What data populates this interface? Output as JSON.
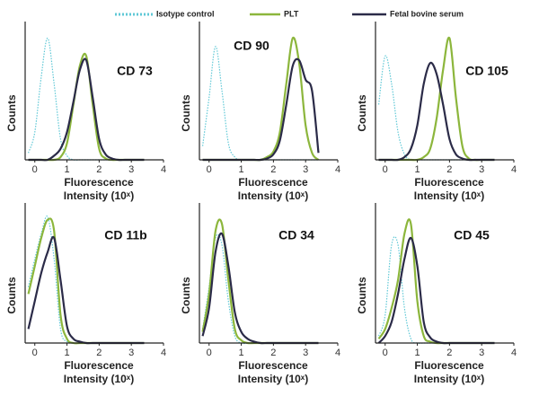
{
  "legend": {
    "entries": [
      {
        "name": "Isotype control",
        "color": "#5fc8d6",
        "dashed": true
      },
      {
        "name": "PLT",
        "color": "#8cb63c",
        "dashed": false
      },
      {
        "name": "Fetal bovine serum",
        "color": "#2b2b48",
        "dashed": false
      }
    ]
  },
  "chart_data": [
    {
      "type": "line",
      "title": "CD 73",
      "ylabel": "Counts",
      "xlabel": [
        "Fluorescence",
        "Intensity (10ˣ)"
      ],
      "xlim": [
        -0.3,
        4
      ],
      "xticks": [
        0,
        1,
        2,
        3,
        4
      ],
      "ylim": [
        0,
        100
      ],
      "x": [
        -0.2,
        0,
        0.2,
        0.4,
        0.6,
        0.8,
        1.0,
        1.2,
        1.4,
        1.6,
        1.8,
        2.0,
        2.2,
        2.4,
        2.6,
        2.8,
        3.0,
        3.2,
        3.4
      ],
      "series": [
        {
          "values": [
            5,
            20,
            60,
            88,
            55,
            15,
            3,
            0,
            0,
            0,
            0,
            0,
            0,
            0,
            0,
            0,
            0,
            0,
            0
          ]
        },
        {
          "values": [
            0,
            0,
            0,
            0,
            0,
            2,
            12,
            40,
            68,
            75,
            40,
            8,
            1,
            0,
            0,
            0,
            0,
            0,
            0
          ]
        },
        {
          "values": [
            0,
            0,
            0,
            0,
            3,
            8,
            20,
            42,
            65,
            72,
            45,
            15,
            4,
            1,
            0,
            0,
            0,
            0,
            0
          ]
        }
      ]
    },
    {
      "type": "line",
      "title": "CD 90",
      "ylabel": "Counts",
      "xlabel": [
        "Fluorescence",
        "Intensity (10ˣ)"
      ],
      "xlim": [
        -0.3,
        4
      ],
      "xticks": [
        0,
        1,
        2,
        3,
        4
      ],
      "ylim": [
        0,
        100
      ],
      "x": [
        -0.2,
        0,
        0.2,
        0.4,
        0.6,
        0.8,
        1.0,
        1.2,
        1.4,
        1.6,
        1.8,
        2.0,
        2.2,
        2.4,
        2.6,
        2.8,
        3.0,
        3.2,
        3.4
      ],
      "series": [
        {
          "values": [
            10,
            45,
            82,
            50,
            12,
            2,
            0,
            0,
            0,
            0,
            0,
            0,
            0,
            0,
            0,
            0,
            0,
            0,
            0
          ]
        },
        {
          "values": [
            0,
            0,
            0,
            0,
            0,
            0,
            0,
            0,
            0,
            0,
            2,
            6,
            20,
            55,
            88,
            70,
            25,
            5,
            0
          ]
        },
        {
          "values": [
            0,
            0,
            0,
            0,
            0,
            0,
            0,
            0,
            0,
            0,
            1,
            4,
            14,
            40,
            68,
            72,
            58,
            50,
            5
          ]
        }
      ]
    },
    {
      "type": "line",
      "title": "CD 105",
      "ylabel": "Counts",
      "xlabel": [
        "Fluorescence",
        "Intensity (10ˣ)"
      ],
      "xlim": [
        -0.3,
        4
      ],
      "xticks": [
        0,
        1,
        2,
        3,
        4
      ],
      "ylim": [
        0,
        100
      ],
      "x": [
        -0.2,
        0,
        0.2,
        0.4,
        0.6,
        0.8,
        1.0,
        1.2,
        1.4,
        1.6,
        1.8,
        2.0,
        2.2,
        2.4,
        2.6,
        2.8,
        3.0,
        3.2,
        3.4
      ],
      "series": [
        {
          "values": [
            40,
            75,
            55,
            20,
            4,
            0,
            0,
            0,
            0,
            0,
            0,
            0,
            0,
            0,
            0,
            0,
            0,
            0,
            0
          ]
        },
        {
          "values": [
            0,
            0,
            0,
            0,
            0,
            0,
            0,
            2,
            8,
            30,
            65,
            88,
            45,
            10,
            1,
            0,
            0,
            0,
            0
          ]
        },
        {
          "values": [
            0,
            0,
            0,
            0,
            2,
            8,
            25,
            55,
            70,
            62,
            40,
            15,
            4,
            1,
            0,
            0,
            0,
            0,
            0
          ]
        }
      ]
    },
    {
      "type": "line",
      "title": "CD 11b",
      "ylabel": "Counts",
      "xlabel": [
        "Fluorescence",
        "Intensity (10ˣ)"
      ],
      "xlim": [
        -0.3,
        4
      ],
      "xticks": [
        0,
        1,
        2,
        3,
        4
      ],
      "ylim": [
        0,
        100
      ],
      "x": [
        -0.2,
        0,
        0.2,
        0.4,
        0.6,
        0.8,
        1.0,
        1.2,
        1.4,
        1.6,
        1.8,
        2.0,
        2.2,
        2.4,
        2.6,
        2.8,
        3.0,
        3.2,
        3.4
      ],
      "series": [
        {
          "values": [
            40,
            60,
            78,
            90,
            60,
            10,
            1,
            0,
            0,
            0,
            0,
            0,
            0,
            0,
            0,
            0,
            0,
            0,
            0
          ]
        },
        {
          "values": [
            35,
            55,
            75,
            88,
            80,
            20,
            3,
            0,
            0,
            0,
            0,
            0,
            0,
            0,
            0,
            0,
            0,
            0,
            0
          ]
        },
        {
          "values": [
            10,
            30,
            50,
            65,
            75,
            45,
            12,
            3,
            1,
            0,
            0,
            0,
            0,
            0,
            0,
            0,
            0,
            0,
            0
          ]
        }
      ]
    },
    {
      "type": "line",
      "title": "CD 34",
      "ylabel": "Counts",
      "xlabel": [
        "Fluorescence",
        "Intensity (10ˣ)"
      ],
      "xlim": [
        -0.3,
        4
      ],
      "xticks": [
        0,
        1,
        2,
        3,
        4
      ],
      "ylim": [
        0,
        100
      ],
      "x": [
        -0.2,
        0,
        0.2,
        0.4,
        0.6,
        0.8,
        1.0,
        1.2,
        1.4,
        1.6,
        1.8,
        2.0,
        2.2,
        2.4,
        2.6,
        2.8,
        3.0,
        3.2,
        3.4
      ],
      "series": [
        {
          "values": [
            10,
            40,
            75,
            70,
            30,
            5,
            0,
            0,
            0,
            0,
            0,
            0,
            0,
            0,
            0,
            0,
            0,
            0,
            0
          ]
        },
        {
          "values": [
            8,
            35,
            80,
            85,
            45,
            10,
            2,
            0,
            0,
            0,
            0,
            0,
            0,
            0,
            0,
            0,
            0,
            0,
            0
          ]
        },
        {
          "values": [
            5,
            25,
            65,
            78,
            55,
            22,
            8,
            3,
            1,
            0,
            0,
            0,
            0,
            0,
            0,
            0,
            0,
            0,
            0
          ]
        }
      ]
    },
    {
      "type": "line",
      "title": "CD 45",
      "ylabel": "Counts",
      "xlabel": [
        "Fluorescence",
        "Intensity (10ˣ)"
      ],
      "xlim": [
        -0.3,
        4
      ],
      "xticks": [
        0,
        1,
        2,
        3,
        4
      ],
      "ylim": [
        0,
        100
      ],
      "x": [
        -0.2,
        0,
        0.2,
        0.4,
        0.6,
        0.8,
        1.0,
        1.2,
        1.4,
        1.6,
        1.8,
        2.0,
        2.2,
        2.4,
        2.6,
        2.8,
        3.0,
        3.2,
        3.4
      ],
      "series": [
        {
          "values": [
            5,
            20,
            70,
            70,
            25,
            3,
            0,
            0,
            0,
            0,
            0,
            0,
            0,
            0,
            0,
            0,
            0,
            0,
            0
          ]
        },
        {
          "values": [
            3,
            10,
            25,
            45,
            78,
            85,
            30,
            5,
            1,
            0,
            0,
            0,
            0,
            0,
            0,
            0,
            0,
            0,
            0
          ]
        },
        {
          "values": [
            0,
            5,
            15,
            35,
            60,
            75,
            55,
            15,
            4,
            1,
            0,
            0,
            0,
            0,
            0,
            0,
            0,
            0,
            0
          ]
        }
      ]
    }
  ]
}
